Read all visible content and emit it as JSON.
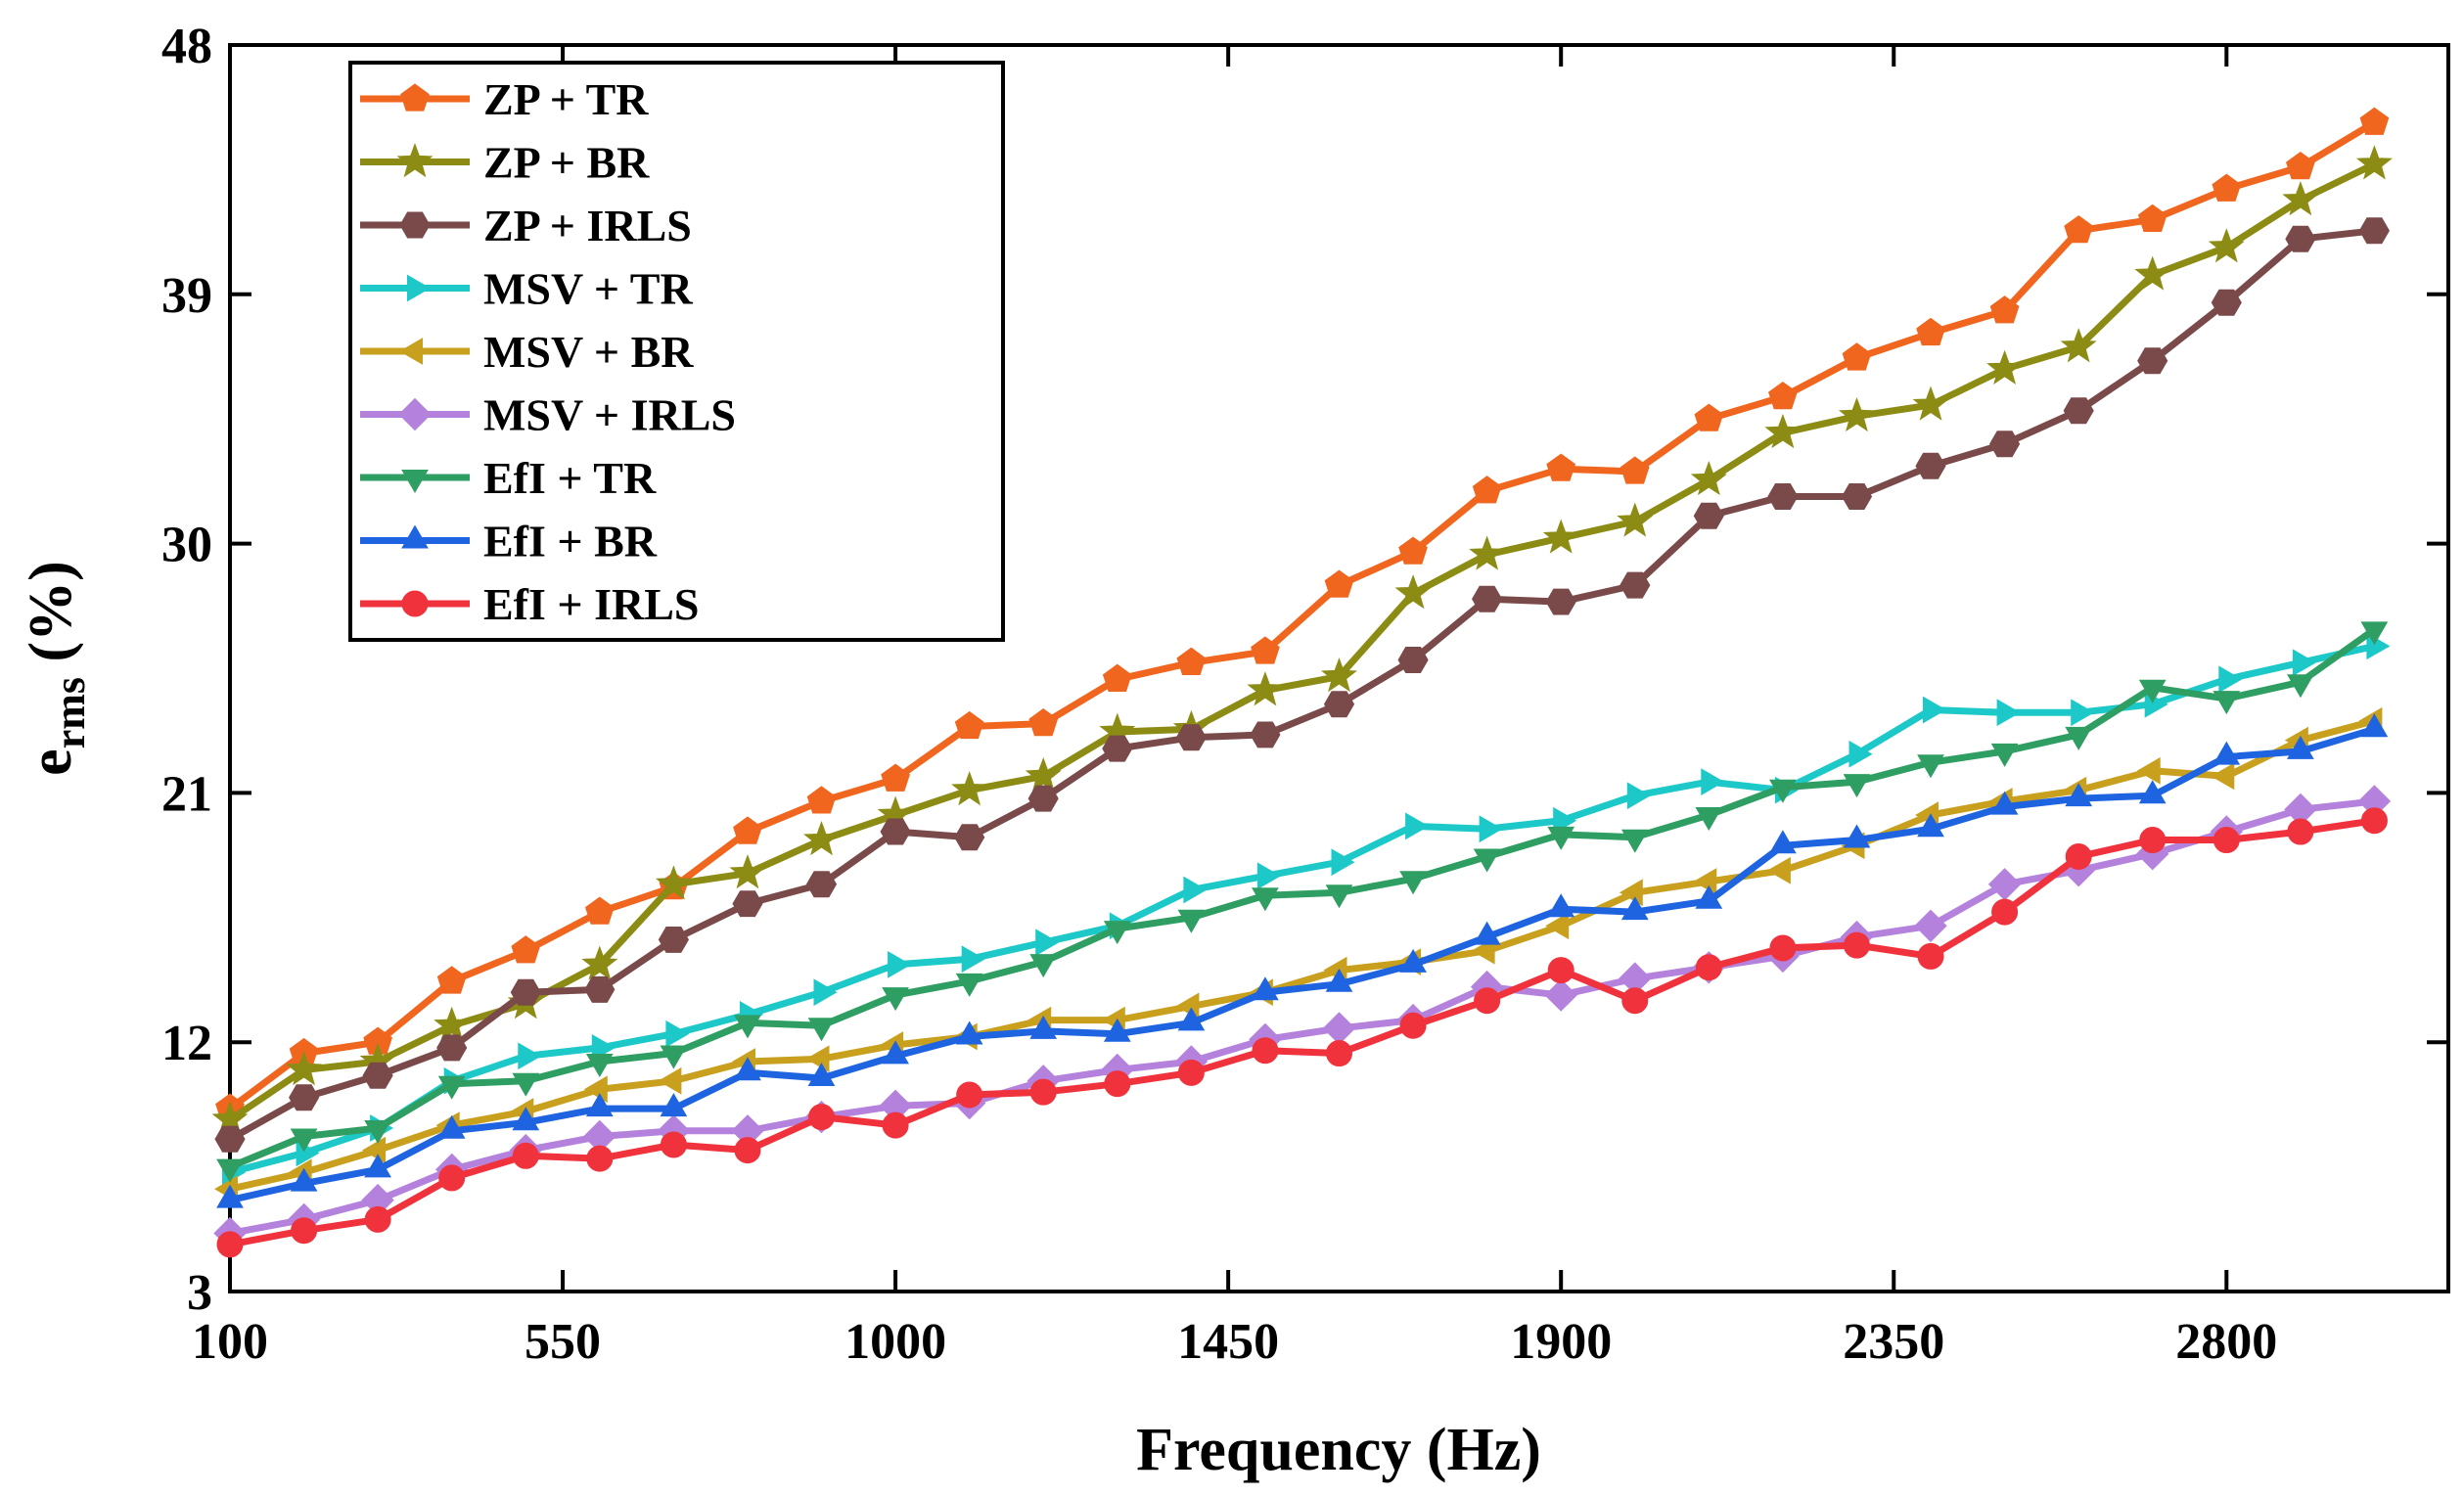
{
  "chart_data": {
    "type": "line",
    "title": "",
    "xlabel": "Frequency (Hz)",
    "ylabel_main": "e",
    "ylabel_sub": "rms",
    "ylabel_unit": " (%)",
    "xlim": [
      100,
      3100
    ],
    "ylim": [
      3,
      48
    ],
    "xticks": [
      100,
      550,
      1000,
      1450,
      1900,
      2350,
      2800
    ],
    "yticks": [
      3,
      12,
      21,
      30,
      39,
      48
    ],
    "x": [
      100,
      200,
      300,
      400,
      500,
      600,
      700,
      800,
      900,
      1000,
      1100,
      1200,
      1300,
      1400,
      1500,
      1600,
      1700,
      1800,
      1900,
      2000,
      2100,
      2200,
      2300,
      2400,
      2500,
      2600,
      2700,
      2800,
      2900,
      3000
    ],
    "legend_position": "top-left",
    "series": [
      {
        "name": "ZP + TR",
        "color": "#F0661E",
        "marker": "pentagon",
        "values": [
          9.6,
          11.6,
          12.0,
          14.2,
          15.3,
          16.7,
          17.6,
          19.6,
          20.7,
          21.5,
          23.4,
          23.5,
          25.1,
          25.7,
          26.1,
          28.5,
          29.7,
          31.9,
          32.7,
          32.6,
          34.5,
          35.3,
          36.7,
          37.6,
          38.4,
          41.3,
          41.7,
          42.8,
          43.6,
          45.2
        ]
      },
      {
        "name": "ZP + BR",
        "color": "#8C8C14",
        "marker": "star",
        "values": [
          9.2,
          11.0,
          11.3,
          12.6,
          13.4,
          14.8,
          17.7,
          18.1,
          19.3,
          20.2,
          21.1,
          21.6,
          23.2,
          23.3,
          24.7,
          25.2,
          28.2,
          29.6,
          30.2,
          30.8,
          32.3,
          34.0,
          34.6,
          35.0,
          36.3,
          37.1,
          39.7,
          40.7,
          42.4,
          43.7
        ]
      },
      {
        "name": "ZP + IRLS",
        "color": "#7A4A4A",
        "marker": "hexagon",
        "values": [
          8.5,
          10.0,
          10.8,
          11.8,
          13.8,
          13.9,
          15.7,
          17.0,
          17.7,
          19.6,
          19.4,
          20.8,
          22.6,
          23.0,
          23.1,
          24.2,
          25.8,
          28.0,
          27.9,
          28.5,
          31.0,
          31.7,
          31.7,
          32.8,
          33.6,
          34.8,
          36.6,
          38.7,
          41.0,
          41.3
        ]
      },
      {
        "name": "MSV + TR",
        "color": "#1CC8C8",
        "marker": "triangle-right",
        "values": [
          7.3,
          8.0,
          8.9,
          10.6,
          11.5,
          11.8,
          12.3,
          13.0,
          13.8,
          14.8,
          15.0,
          15.6,
          16.2,
          17.5,
          18.0,
          18.5,
          19.8,
          19.7,
          20.0,
          20.9,
          21.4,
          21.1,
          22.4,
          24.0,
          23.9,
          23.9,
          24.2,
          25.1,
          25.7,
          26.3
        ]
      },
      {
        "name": "MSV + BR",
        "color": "#C8A01E",
        "marker": "triangle-left",
        "values": [
          6.7,
          7.3,
          8.1,
          9.0,
          9.5,
          10.3,
          10.6,
          11.3,
          11.4,
          11.9,
          12.2,
          12.8,
          12.8,
          13.3,
          13.8,
          14.6,
          14.9,
          15.3,
          16.2,
          17.4,
          17.8,
          18.2,
          19.1,
          20.2,
          20.7,
          21.1,
          21.8,
          21.6,
          22.9,
          23.6
        ]
      },
      {
        "name": "MSV + IRLS",
        "color": "#B482DC",
        "marker": "diamond",
        "values": [
          5.1,
          5.6,
          6.3,
          7.4,
          8.1,
          8.6,
          8.8,
          8.8,
          9.3,
          9.7,
          9.8,
          10.6,
          11.0,
          11.3,
          12.1,
          12.5,
          12.8,
          14.0,
          13.7,
          14.3,
          14.7,
          15.1,
          15.8,
          16.2,
          17.7,
          18.2,
          18.8,
          19.6,
          20.4,
          20.7
        ]
      },
      {
        "name": "EfI + TR",
        "color": "#2E9E62",
        "marker": "triangle-down",
        "values": [
          7.5,
          8.6,
          8.9,
          10.5,
          10.6,
          11.3,
          11.6,
          12.7,
          12.6,
          13.7,
          14.2,
          14.9,
          16.1,
          16.5,
          17.3,
          17.4,
          17.9,
          18.7,
          19.5,
          19.4,
          20.2,
          21.2,
          21.4,
          22.1,
          22.5,
          23.1,
          24.8,
          24.4,
          25.0,
          26.9
        ]
      },
      {
        "name": "EfI + BR",
        "color": "#1E64E0",
        "marker": "triangle-up",
        "values": [
          6.3,
          6.9,
          7.4,
          8.8,
          9.1,
          9.6,
          9.6,
          10.9,
          10.7,
          11.5,
          12.2,
          12.4,
          12.3,
          12.7,
          13.8,
          14.1,
          14.8,
          15.8,
          16.8,
          16.7,
          17.1,
          19.1,
          19.3,
          19.7,
          20.5,
          20.8,
          20.9,
          22.3,
          22.5,
          23.3
        ]
      },
      {
        "name": "EfI + IRLS",
        "color": "#F0323C",
        "marker": "circle",
        "values": [
          4.7,
          5.2,
          5.6,
          7.1,
          7.9,
          7.8,
          8.3,
          8.1,
          9.3,
          9.0,
          10.1,
          10.2,
          10.5,
          10.9,
          11.7,
          11.6,
          12.6,
          13.5,
          14.6,
          13.5,
          14.7,
          15.4,
          15.5,
          15.1,
          16.7,
          18.7,
          19.3,
          19.3,
          19.6,
          20.0
        ]
      }
    ]
  }
}
